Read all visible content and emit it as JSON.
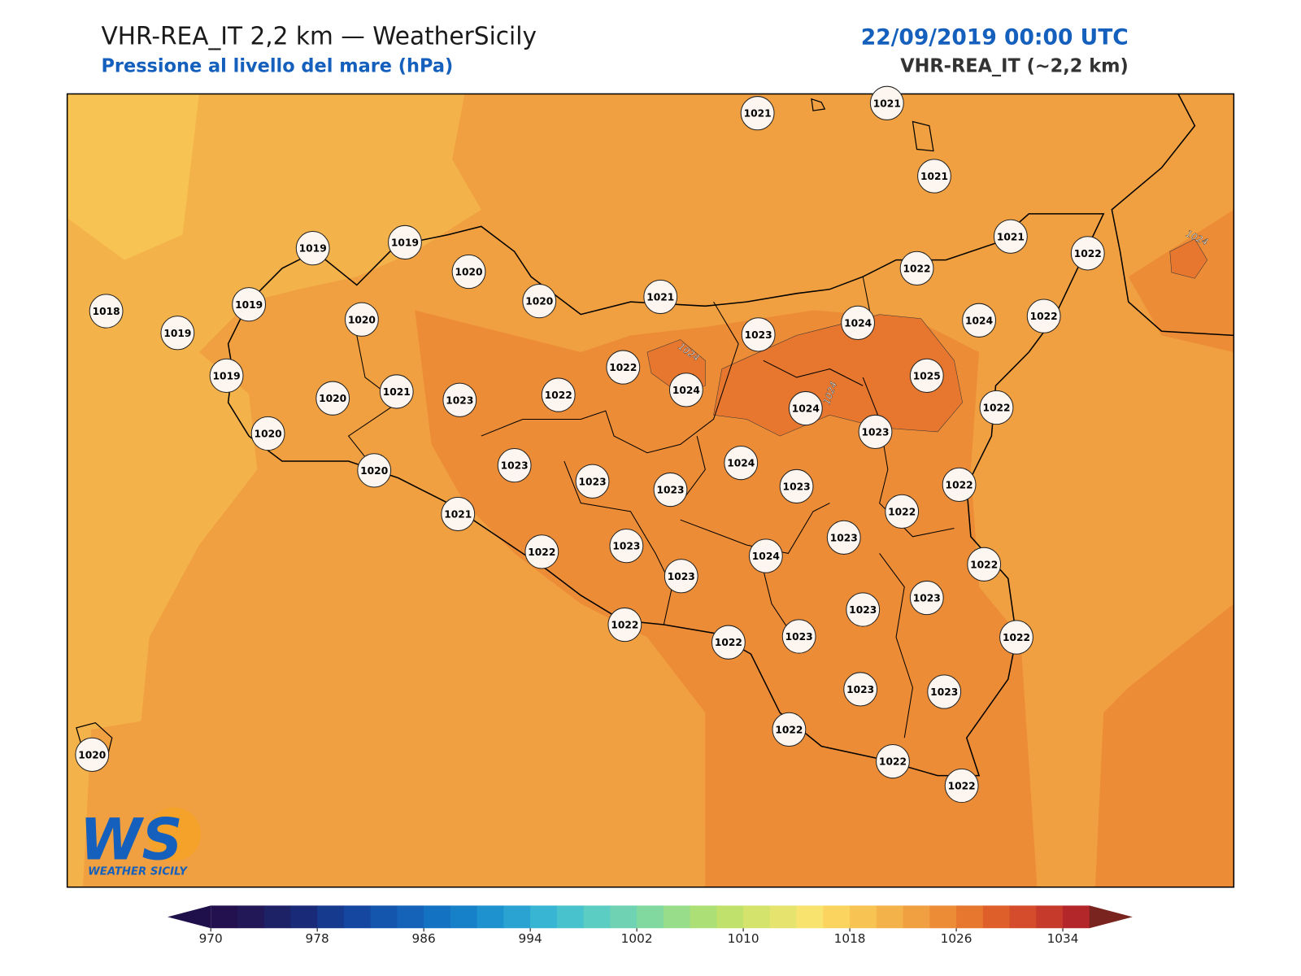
{
  "header": {
    "title": "VHR-REA_IT 2,2 km — WeatherSicily",
    "subtitle": "Pressione al livello del mare (hPa)",
    "datetime": "22/09/2019 00:00 UTC",
    "model": "VHR-REA_IT (~2,2 km)"
  },
  "stations": [
    1021,
    1021,
    1021,
    1019,
    1019,
    1020,
    1020,
    1021,
    1021,
    1022,
    1022,
    1018,
    1019,
    1019,
    1020,
    1023,
    1024,
    1024,
    1022,
    1022,
    1024,
    1025,
    1019,
    1020,
    1021,
    1023,
    1022,
    1024,
    1023,
    1022,
    1020,
    1023,
    1024,
    1023,
    1023,
    1023,
    1022,
    1020,
    1021,
    1022,
    1023,
    1022,
    1023,
    1024,
    1022,
    1023,
    1023,
    1023,
    1022,
    1022,
    1023,
    1022,
    1023,
    1023,
    1022,
    1022,
    1022,
    1020
  ],
  "contour_labels": [
    "1024",
    "1024",
    "1024"
  ],
  "logo": {
    "mark": "WS",
    "name": "WEATHER SICILY"
  },
  "colorbar": {
    "lim": [
      970,
      1036
    ],
    "ticks": [
      970,
      978,
      986,
      994,
      1002,
      1010,
      1018,
      1026,
      1034
    ],
    "under_color": "#1f0f4a",
    "over_color": "#7a2420",
    "colors": [
      "#23104f",
      "#221858",
      "#1d2166",
      "#192b78",
      "#163a8e",
      "#1547a0",
      "#1455ad",
      "#1463b8",
      "#1472c2",
      "#1681c8",
      "#1e92cf",
      "#2aa3d3",
      "#38b5d2",
      "#48c3cd",
      "#5ccdc3",
      "#6fd3b3",
      "#82d9a0",
      "#97dd8a",
      "#acdf75",
      "#c0e26c",
      "#d4e36c",
      "#e6e46e",
      "#f8e36e",
      "#fbd460",
      "#f7c353",
      "#f4b24a",
      "#f0a040",
      "#ec8c37",
      "#e7772f",
      "#df5f2b",
      "#d44c2b",
      "#c63a2c",
      "#b3262a"
    ]
  }
}
